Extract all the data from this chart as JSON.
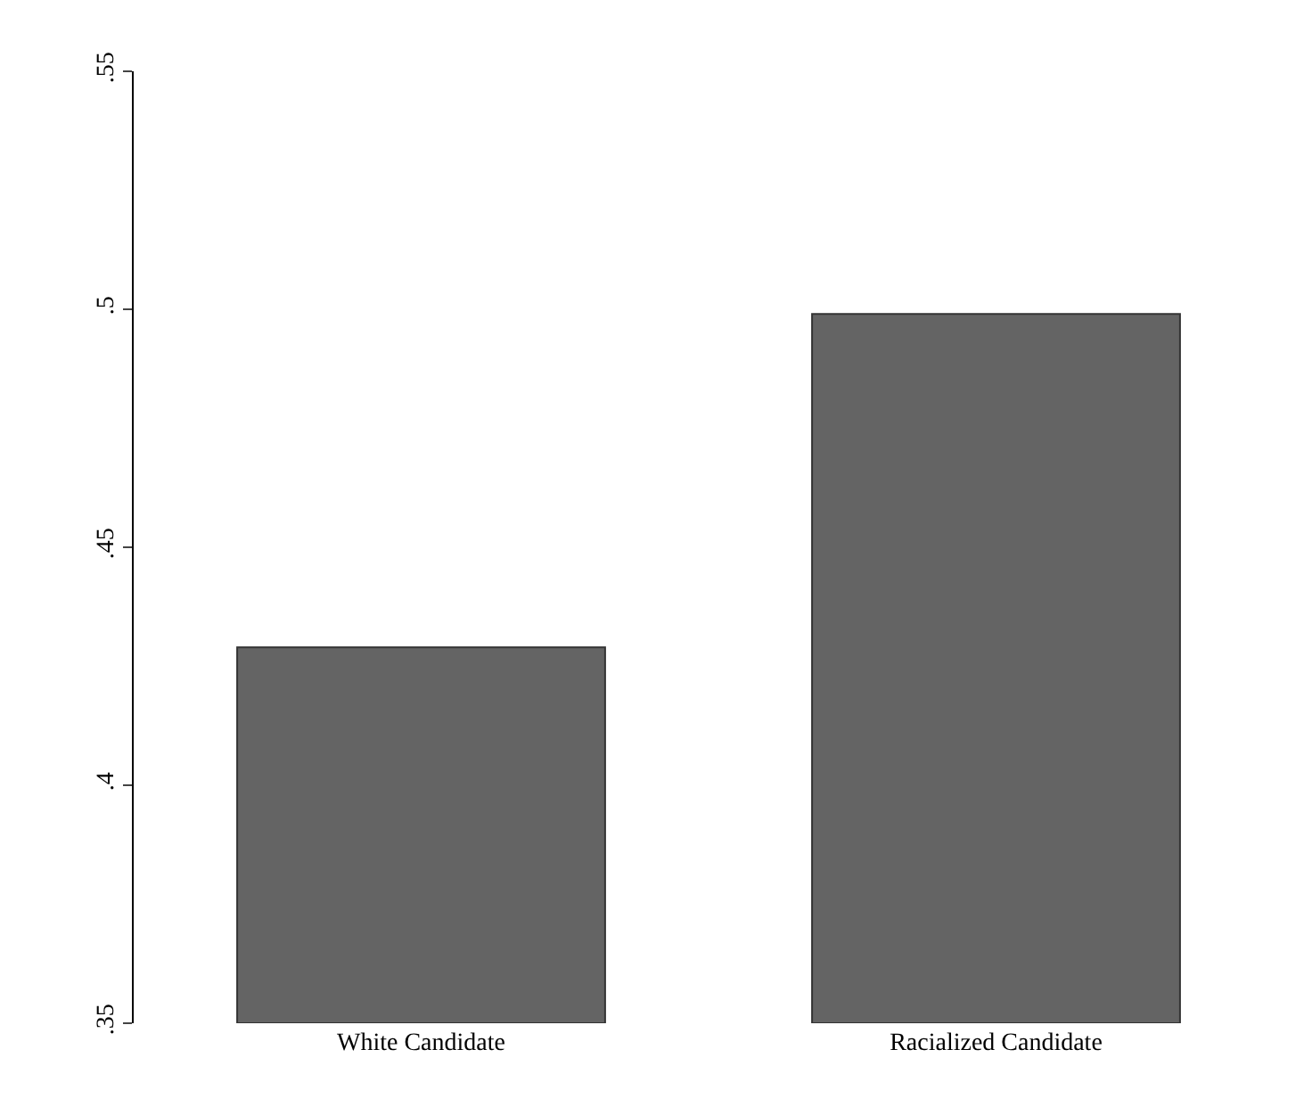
{
  "chart_data": {
    "type": "bar",
    "categories": [
      "White Candidate",
      "Racialized Candidate"
    ],
    "values": [
      0.429,
      0.499
    ],
    "color": "#646464",
    "ylim": [
      0.35,
      0.55
    ],
    "yticks": [
      {
        "value": 0.35,
        "label": ".35"
      },
      {
        "value": 0.4,
        "label": ".4"
      },
      {
        "value": 0.45,
        "label": ".45"
      },
      {
        "value": 0.5,
        "label": ".5"
      },
      {
        "value": 0.55,
        "label": ".55"
      }
    ],
    "grid": false
  }
}
